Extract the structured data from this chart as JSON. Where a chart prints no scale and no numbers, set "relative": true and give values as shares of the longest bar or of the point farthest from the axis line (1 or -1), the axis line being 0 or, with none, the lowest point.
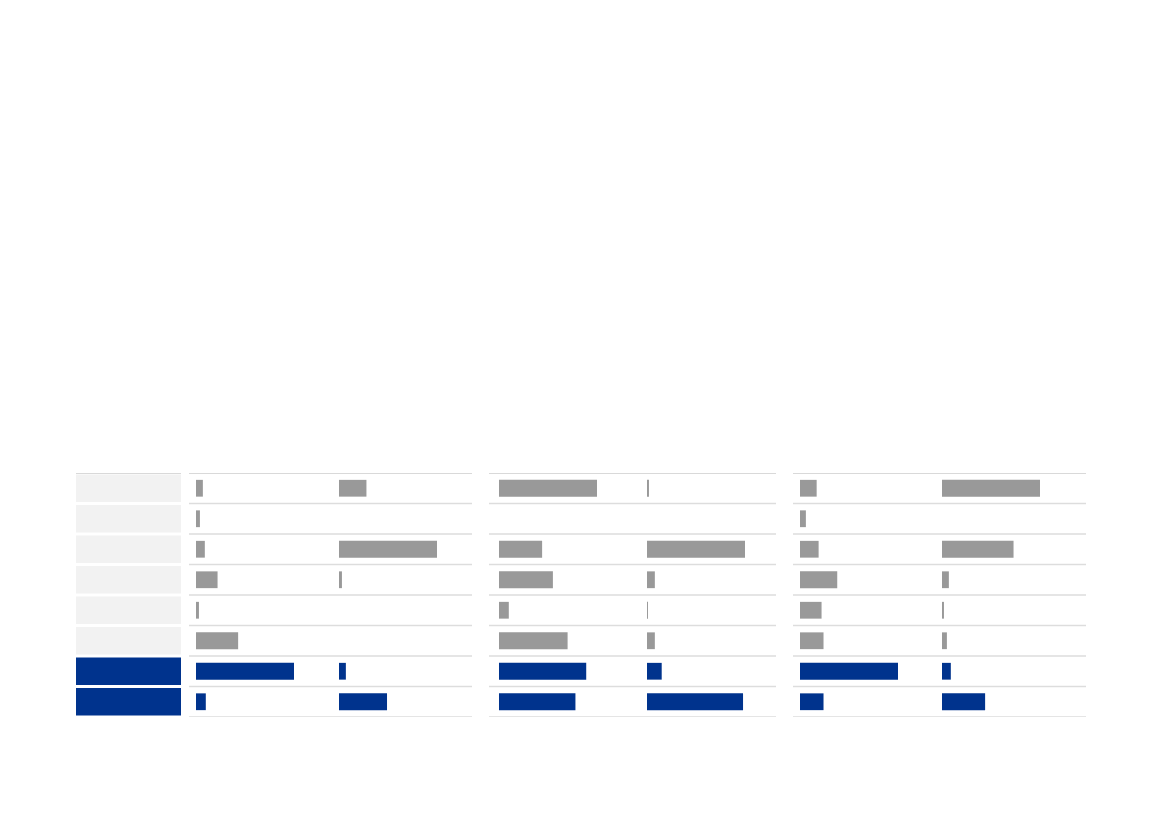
{
  "chart_data": [
    {
      "type": "bar",
      "orientation": "horizontal",
      "relative": true,
      "categories": [
        null,
        null,
        null,
        null,
        null,
        null,
        null,
        null
      ],
      "values": [
        0.07,
        0.04,
        0.09,
        0.22,
        0.03,
        0.43,
        1,
        0.1
      ],
      "colors": [
        "#999999",
        "#999999",
        "#999999",
        "#999999",
        "#999999",
        "#999999",
        "#00338d",
        "#00338d"
      ]
    },
    {
      "type": "bar",
      "orientation": "horizontal",
      "relative": true,
      "categories": [
        null,
        null,
        null,
        null,
        null,
        null,
        null,
        null
      ],
      "values": [
        0.28,
        null,
        1,
        0.03,
        null,
        null,
        0.07,
        0.49
      ],
      "colors": [
        "#999999",
        "#999999",
        "#999999",
        "#999999",
        "#999999",
        "#999999",
        "#00338d",
        "#00338d"
      ]
    },
    {
      "type": "bar",
      "orientation": "horizontal",
      "relative": true,
      "categories": [
        null,
        null,
        null,
        null,
        null,
        null,
        null,
        null
      ],
      "values": [
        1,
        null,
        0.44,
        0.55,
        0.1,
        0.7,
        0.89,
        0.78
      ],
      "colors": [
        "#999999",
        "#999999",
        "#999999",
        "#999999",
        "#999999",
        "#999999",
        "#00338d",
        "#00338d"
      ]
    },
    {
      "type": "bar",
      "orientation": "horizontal",
      "relative": true,
      "categories": [
        null,
        null,
        null,
        null,
        null,
        null,
        null,
        null
      ],
      "values": [
        0.02,
        null,
        1,
        0.08,
        0.01,
        0.08,
        0.15,
        0.98
      ],
      "colors": [
        "#999999",
        "#999999",
        "#999999",
        "#999999",
        "#999999",
        "#999999",
        "#00338d",
        "#00338d"
      ]
    },
    {
      "type": "bar",
      "orientation": "horizontal",
      "relative": true,
      "categories": [
        null,
        null,
        null,
        null,
        null,
        null,
        null,
        null
      ],
      "values": [
        0.17,
        0.06,
        0.19,
        0.38,
        0.22,
        0.24,
        1,
        0.24
      ],
      "colors": [
        "#999999",
        "#999999",
        "#999999",
        "#999999",
        "#999999",
        "#999999",
        "#00338d",
        "#00338d"
      ]
    },
    {
      "type": "bar",
      "orientation": "horizontal",
      "relative": true,
      "categories": [
        null,
        null,
        null,
        null,
        null,
        null,
        null,
        null
      ],
      "values": [
        1,
        null,
        0.73,
        0.07,
        0.02,
        0.05,
        0.09,
        0.44
      ],
      "colors": [
        "#999999",
        "#999999",
        "#999999",
        "#999999",
        "#999999",
        "#999999",
        "#00338d",
        "#00338d"
      ]
    }
  ]
}
